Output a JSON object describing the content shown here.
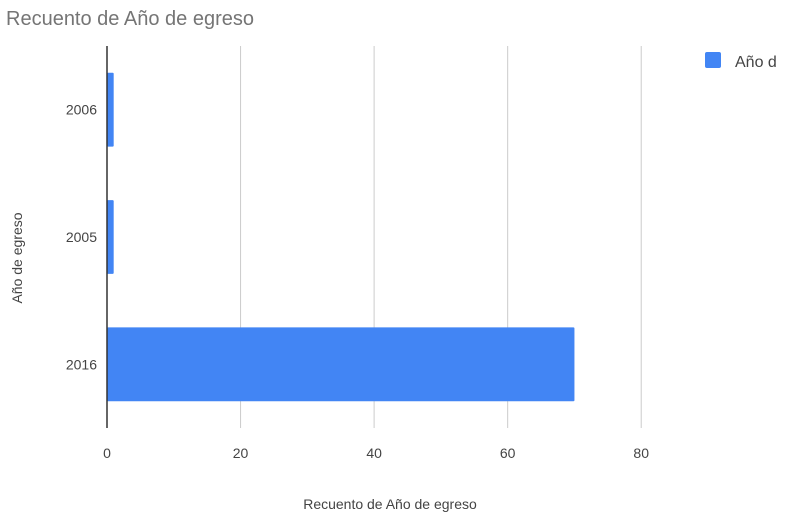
{
  "chart_data": {
    "type": "bar",
    "orientation": "horizontal",
    "title": "Recuento de Año de egreso",
    "xlabel": "Recuento de Año de egreso",
    "ylabel": "Año de egreso",
    "categories": [
      "2006",
      "2005",
      "2016"
    ],
    "series": [
      {
        "name": "Año de egreso",
        "values": [
          1,
          1,
          70
        ]
      }
    ],
    "legend_label_visible": "Año d",
    "xlim": [
      0,
      90
    ],
    "xticks": [
      0,
      20,
      40,
      60,
      80
    ],
    "grid": true,
    "legend": "top-right",
    "colors": {
      "bar": "#4285f4",
      "grid": "#cccccc",
      "axis": "#333333"
    }
  }
}
